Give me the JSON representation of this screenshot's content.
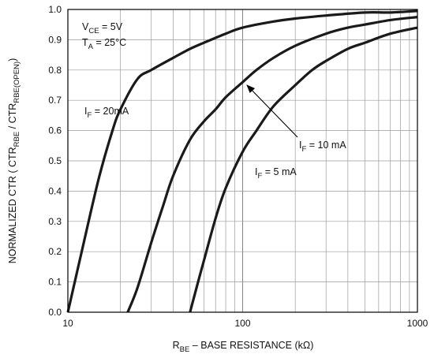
{
  "chart_data": {
    "type": "line",
    "title": "",
    "xscale": "log",
    "xlim": [
      10,
      1000
    ],
    "ylim": [
      0.0,
      1.0
    ],
    "grid": true,
    "x_ticks": [
      10,
      100,
      1000
    ],
    "x_tick_labels": [
      "10",
      "100",
      "1000"
    ],
    "y_ticks": [
      0.0,
      0.1,
      0.2,
      0.3,
      0.4,
      0.5,
      0.6,
      0.7,
      0.8,
      0.9,
      1.0
    ],
    "y_tick_labels": [
      "0.0",
      "0.1",
      "0.2",
      "0.3",
      "0.4",
      "0.5",
      "0.6",
      "0.7",
      "0.8",
      "0.9",
      "1.0"
    ],
    "xlabel": {
      "main": "R",
      "sub": "BE",
      "rest": " – BASE RESISTANCE (kΩ)"
    },
    "ylabel": {
      "p1": "NORMALIZED CTR ( CTR",
      "s1": "RBE",
      "p2": " / CTR",
      "s2": "RBE(OPEN)",
      "p3": ")"
    },
    "conditions": {
      "vce": {
        "main": "V",
        "sub": "CE",
        "rest": " = 5V"
      },
      "ta": {
        "main": "T",
        "sub": "A",
        "rest": " = 25°C"
      }
    },
    "series": [
      {
        "label": {
          "main": "I",
          "sub": "F",
          "rest": " = 20mA"
        },
        "x": [
          10,
          12,
          15,
          18,
          20,
          25,
          30,
          40,
          50,
          60,
          80,
          100,
          150,
          200,
          300,
          500,
          700,
          1000
        ],
        "y": [
          0.0,
          0.2,
          0.44,
          0.6,
          0.67,
          0.77,
          0.8,
          0.84,
          0.87,
          0.89,
          0.92,
          0.94,
          0.96,
          0.97,
          0.98,
          0.99,
          0.99,
          0.995
        ]
      },
      {
        "label": {
          "main": "I",
          "sub": "F",
          "rest": " = 10 mA"
        },
        "x": [
          22,
          25,
          30,
          35,
          40,
          50,
          60,
          70,
          80,
          100,
          120,
          150,
          200,
          300,
          400,
          500,
          700,
          1000
        ],
        "y": [
          0.0,
          0.08,
          0.23,
          0.35,
          0.45,
          0.57,
          0.63,
          0.67,
          0.71,
          0.76,
          0.8,
          0.84,
          0.88,
          0.92,
          0.94,
          0.95,
          0.965,
          0.975
        ]
      },
      {
        "label": {
          "main": "I",
          "sub": "F",
          "rest": " = 5 mA"
        },
        "x": [
          50,
          55,
          60,
          70,
          80,
          100,
          120,
          150,
          200,
          250,
          300,
          400,
          500,
          700,
          1000
        ],
        "y": [
          0.0,
          0.09,
          0.17,
          0.31,
          0.41,
          0.53,
          0.6,
          0.68,
          0.75,
          0.8,
          0.83,
          0.87,
          0.89,
          0.92,
          0.94
        ]
      }
    ]
  }
}
